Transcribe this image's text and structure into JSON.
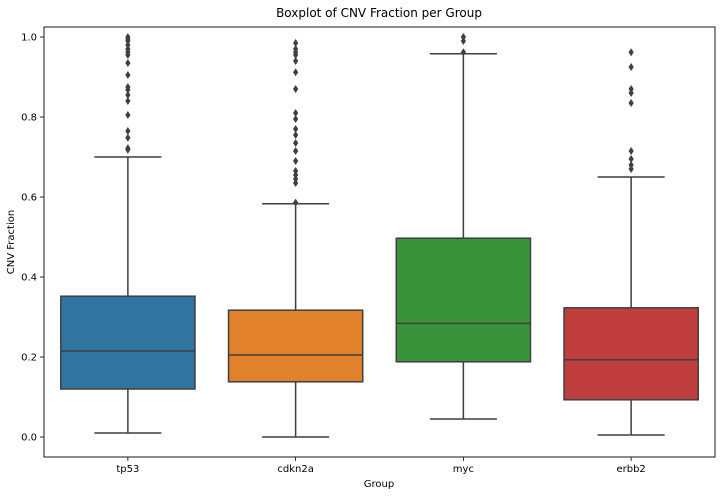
{
  "chart_data": {
    "type": "boxplot",
    "title": "Boxplot of CNV Fraction per Group",
    "xlabel": "Group",
    "ylabel": "CNV Fraction",
    "ylim": [
      -0.05,
      1.025
    ],
    "yticks": [
      0.0,
      0.2,
      0.4,
      0.6,
      0.8,
      1.0
    ],
    "ytick_labels": [
      "0.0",
      "0.2",
      "0.4",
      "0.6",
      "0.8",
      "1.0"
    ],
    "grid": false,
    "groups": [
      {
        "name": "tp53",
        "color": "#3274a1",
        "whisker_low": 0.01,
        "q1": 0.12,
        "median": 0.215,
        "q3": 0.352,
        "whisker_high": 0.7,
        "outliers": [
          0.718,
          0.722,
          0.748,
          0.765,
          0.805,
          0.84,
          0.855,
          0.868,
          0.875,
          0.905,
          0.935,
          0.955,
          0.962,
          0.97,
          0.98,
          0.99,
          0.995,
          1.0
        ]
      },
      {
        "name": "cdkn2a",
        "color": "#e1812c",
        "whisker_low": 0.0,
        "q1": 0.138,
        "median": 0.205,
        "q3": 0.317,
        "whisker_high": 0.583,
        "outliers": [
          0.586,
          0.635,
          0.645,
          0.655,
          0.665,
          0.69,
          0.715,
          0.735,
          0.755,
          0.77,
          0.795,
          0.81,
          0.87,
          0.912,
          0.94,
          0.955,
          0.962,
          0.97,
          0.985
        ]
      },
      {
        "name": "myc",
        "color": "#3a923a",
        "whisker_low": 0.045,
        "q1": 0.188,
        "median": 0.284,
        "q3": 0.497,
        "whisker_high": 0.958,
        "outliers": [
          0.962,
          0.99,
          1.0
        ]
      },
      {
        "name": "erbb2",
        "color": "#c03d3e",
        "whisker_low": 0.005,
        "q1": 0.093,
        "median": 0.193,
        "q3": 0.323,
        "whisker_high": 0.65,
        "outliers": [
          0.67,
          0.68,
          0.695,
          0.715,
          0.835,
          0.86,
          0.87,
          0.925,
          0.962
        ]
      }
    ]
  }
}
